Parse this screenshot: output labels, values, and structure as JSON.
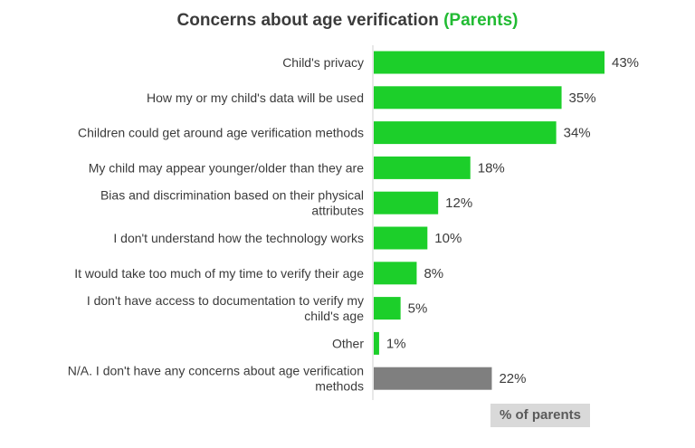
{
  "colors": {
    "bar": "#1ccf2a",
    "bar_na": "#7f7f7f",
    "title_accent": "#22bb33",
    "text": "#3b3b3b",
    "xlabel_bg": "#d9d9d9"
  },
  "chart_data": {
    "type": "bar",
    "orientation": "horizontal",
    "title": "Concerns about age verification",
    "subtitle": "(Parents)",
    "xlabel": "% of parents",
    "ylabel": "",
    "xlim": [
      0,
      50
    ],
    "grid": false,
    "legend": "none",
    "value_suffix": "%",
    "categories": [
      [
        "Child's privacy"
      ],
      [
        "How my or my child's data will be used"
      ],
      [
        "Children could get around age verification methods"
      ],
      [
        "My child may appear younger/older than they are"
      ],
      [
        "Bias and discrimination based on their physical",
        "attributes"
      ],
      [
        "I don't understand how the technology works"
      ],
      [
        "It would take too much of my time to verify their age"
      ],
      [
        "I don't have access to documentation to verify my",
        "child's age"
      ],
      [
        "Other"
      ],
      [
        "N/A. I don't have any concerns about age verification",
        "methods"
      ]
    ],
    "values": [
      43,
      35,
      34,
      18,
      12,
      10,
      8,
      5,
      1,
      22
    ],
    "bar_colors": [
      "bar",
      "bar",
      "bar",
      "bar",
      "bar",
      "bar",
      "bar",
      "bar",
      "bar",
      "bar_na"
    ]
  }
}
